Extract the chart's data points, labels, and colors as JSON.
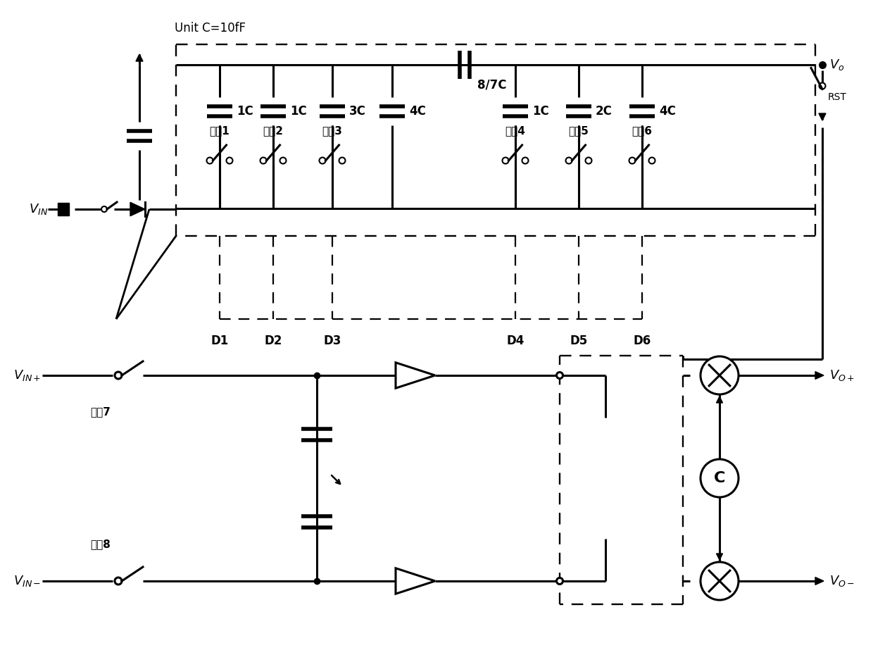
{
  "title": "Unit C=10fF",
  "bg_color": "#ffffff",
  "line_color": "#000000",
  "cap_labels": [
    "1C",
    "1C",
    "3C",
    "4C",
    "1C",
    "2C",
    "4C"
  ],
  "switch_labels": [
    "开关1",
    "开关2",
    "开关3",
    "开关4",
    "开关5",
    "开关6"
  ],
  "d_labels": [
    "D1",
    "D2",
    "D3",
    "D4",
    "D5",
    "D6"
  ],
  "big_cap_label": "8/7C",
  "rst_label": "RST",
  "switch7_label": "开关7",
  "switch8_label": "开关8"
}
